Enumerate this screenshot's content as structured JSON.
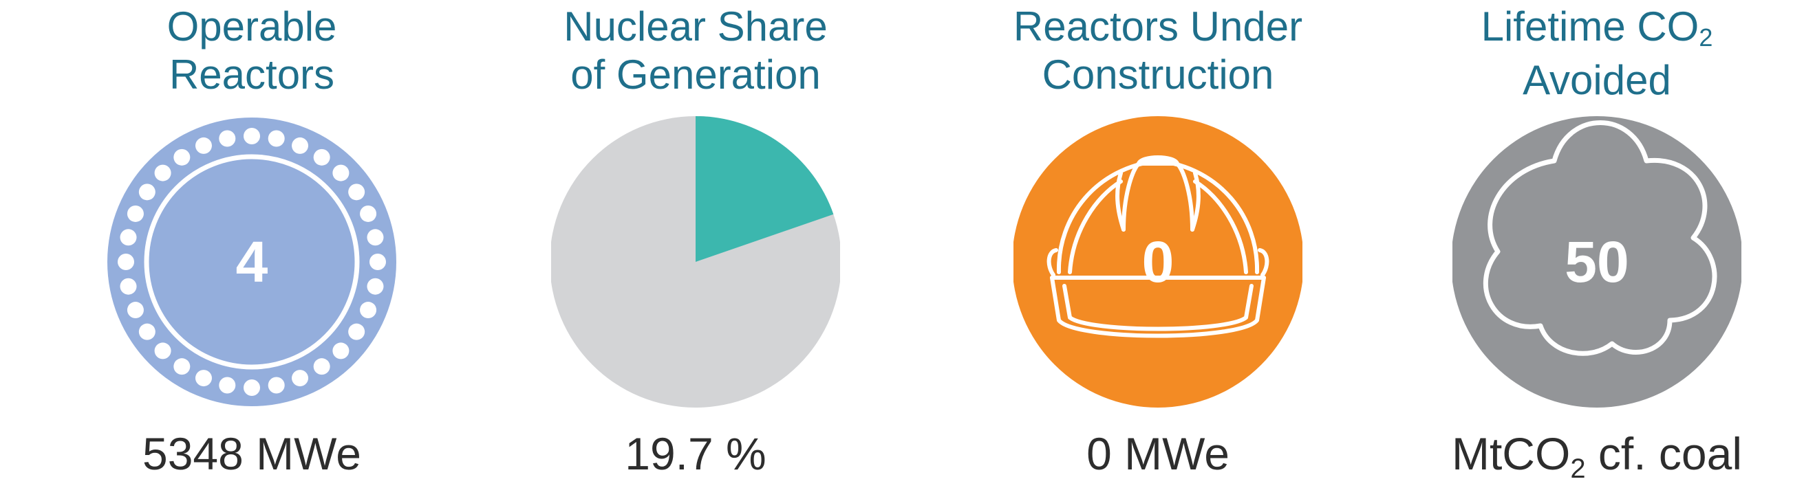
{
  "panels": {
    "operable": {
      "title_line1": "Operable",
      "title_line2": "Reactors",
      "value": "4",
      "caption": "5348 MWe",
      "color": "#94aedc"
    },
    "share": {
      "title_line1": "Nuclear Share",
      "title_line2": "of Generation",
      "caption": "19.7 %",
      "share_fraction": 0.197,
      "nuclear_color": "#3cb7ae",
      "other_color": "#d3d4d6"
    },
    "construction": {
      "title_line1": "Reactors Under",
      "title_line2": "Construction",
      "value": "0",
      "caption": "0 MWe",
      "color": "#f38b24",
      "icon": "hard-hat-icon"
    },
    "co2": {
      "title_line1_prefix": "Lifetime CO",
      "title_line1_sub": "2",
      "title_line2": "Avoided",
      "value": "50",
      "caption_prefix": "MtCO",
      "caption_sub": "2",
      "caption_suffix": " cf. coal",
      "color": "#939598",
      "icon": "cloud-icon"
    }
  }
}
